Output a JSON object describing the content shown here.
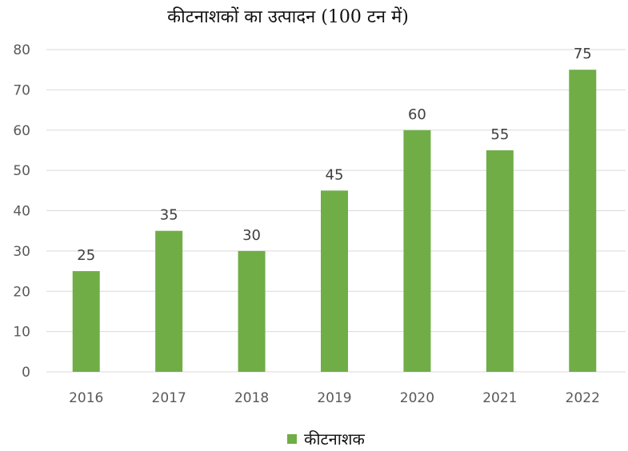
{
  "chart_data": {
    "type": "bar",
    "title": "कीटनाशकों का उत्पादन (100 टन में)",
    "categories": [
      "2016",
      "2017",
      "2018",
      "2019",
      "2020",
      "2021",
      "2022"
    ],
    "series": [
      {
        "name": "कीटनाशक",
        "values": [
          25,
          35,
          30,
          45,
          60,
          55,
          75
        ],
        "color": "#70ad47"
      }
    ],
    "xlabel": "",
    "ylabel": "",
    "ylim": [
      0,
      80
    ],
    "yticks": [
      "0",
      "10",
      "20",
      "30",
      "40",
      "50",
      "60",
      "70",
      "80"
    ],
    "data_labels": [
      "25",
      "35",
      "30",
      "45",
      "60",
      "55",
      "75"
    ],
    "grid": true,
    "legend_position": "bottom"
  }
}
